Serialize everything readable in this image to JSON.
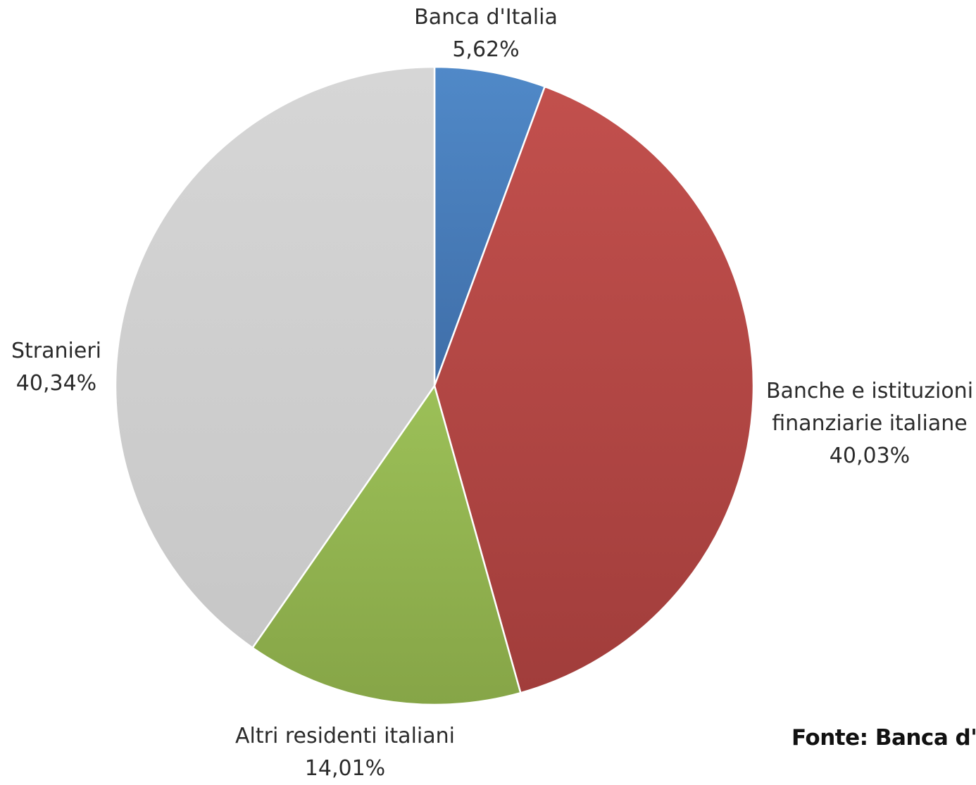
{
  "chart_data": {
    "type": "pie",
    "start_angle_deg": 0,
    "direction": "clockwise",
    "slices": [
      {
        "label": "Banca d'Italia",
        "value": 5.62,
        "value_label": "5,62%",
        "color": "#4a7ebb"
      },
      {
        "label": "Banche e istituzioni finanziarie italiane",
        "label_lines": [
          "Banche e istituzioni",
          "finanziarie italiane"
        ],
        "value": 40.03,
        "value_label": "40,03%",
        "color": "#be4b48"
      },
      {
        "label": "Altri residenti italiani",
        "value": 14.01,
        "value_label": "14,01%",
        "color": "#98b954"
      },
      {
        "label": "Stranieri",
        "value": 40.34,
        "value_label": "40,34%",
        "color": "#cfcfcf"
      }
    ]
  },
  "source_text": "Fonte: Banca d'"
}
